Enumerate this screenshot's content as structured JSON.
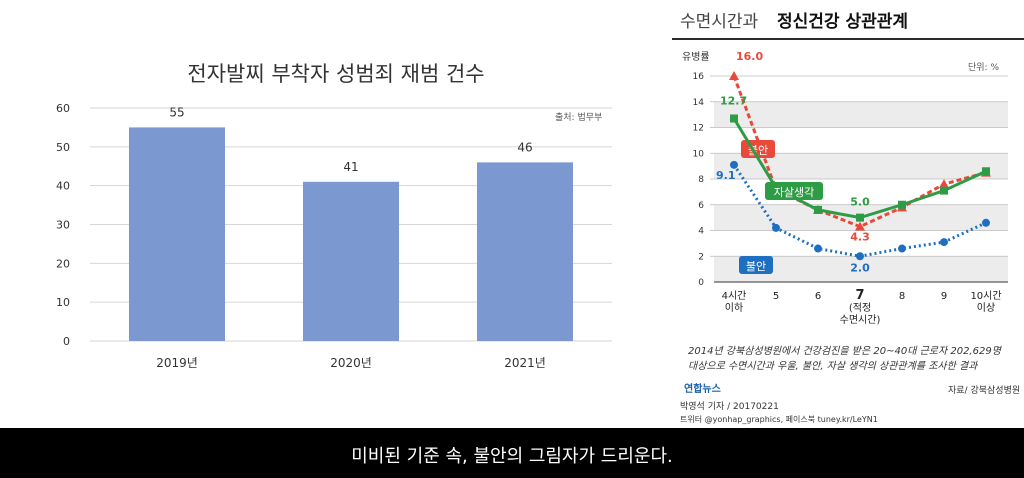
{
  "left_chart": {
    "title": "전자발찌 부착자 성범죄 재범 건수",
    "source": "출처: 법무부",
    "colors": {
      "bar": "#7b98d1",
      "grid": "#d6d6d6"
    },
    "chart_data": {
      "type": "bar",
      "title": "전자발찌 부착자 성범죄 재범 건수",
      "categories": [
        "2019년",
        "2020년",
        "2021년"
      ],
      "values": [
        55,
        41,
        46
      ],
      "yticks": [
        0,
        10,
        20,
        30,
        40,
        50,
        60
      ],
      "ylim": [
        0,
        60
      ],
      "grid": true
    }
  },
  "right_chart": {
    "title_prefix": "수면시간과",
    "title_main": "정신건강 상관관계",
    "ylabel": "유병률",
    "unit": "단위: %",
    "note_line1": "2014년 강북삼성병원에서 건강검진을 받은 20~40대 근로자 202,629명",
    "note_line2": "대상으로 수면시간과 우울, 불안, 자살 생각의 상관관계를 조사한 결과",
    "logo": "연합뉴스",
    "source": "자료/ 강북삼성병원",
    "credit1": "박영석 기자 / 20170221",
    "credit2": "트위터 @yonhap_graphics, 페이스북 tuney.kr/LeYN1",
    "chart_data": {
      "type": "line",
      "x": [
        "4시간 이하",
        "5",
        "6",
        "7 (적정 수면시간)",
        "8",
        "9",
        "10시간 이상"
      ],
      "ylim": [
        0,
        16
      ],
      "yticks": [
        2,
        4,
        6,
        8,
        10,
        12,
        14,
        16
      ],
      "grid": true,
      "series": [
        {
          "name": "불안",
          "color": "#e8493b",
          "style": "dashed",
          "values": [
            16.0,
            7.2,
            5.6,
            4.3,
            5.8,
            7.6,
            8.5
          ],
          "labels": [
            "16.0",
            "",
            "",
            "4.3",
            "",
            "",
            ""
          ]
        },
        {
          "name": "자살생각",
          "color": "#2e9b45",
          "style": "solid",
          "values": [
            12.7,
            7.3,
            5.6,
            5.0,
            6.0,
            7.1,
            8.6
          ],
          "labels": [
            "12.7",
            "",
            "",
            "5.0",
            "",
            "",
            ""
          ]
        },
        {
          "name": "불안",
          "color": "#1f6fc1",
          "style": "dotted",
          "values": [
            9.1,
            4.2,
            2.6,
            2.0,
            2.6,
            3.1,
            4.6
          ],
          "labels": [
            "9.1",
            "",
            "",
            "2.0",
            "",
            "",
            ""
          ]
        }
      ],
      "x_tick_lines": [
        [
          "4시간",
          "이하"
        ],
        [
          "5"
        ],
        [
          "6"
        ],
        [
          "7",
          "(적정",
          "수면시간)"
        ],
        [
          "8"
        ],
        [
          "9"
        ],
        [
          "10시간",
          "이상"
        ]
      ]
    }
  },
  "caption": "미비된 기준 속, 불안의 그림자가 드리운다."
}
